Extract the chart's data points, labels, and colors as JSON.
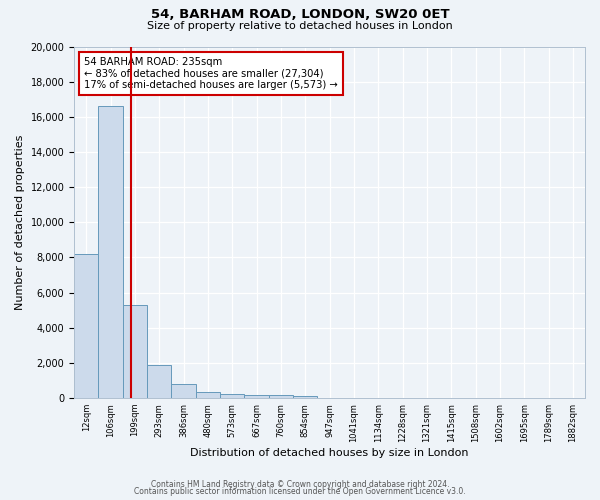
{
  "title": "54, BARHAM ROAD, LONDON, SW20 0ET",
  "subtitle": "Size of property relative to detached houses in London",
  "xlabel": "Distribution of detached houses by size in London",
  "ylabel": "Number of detached properties",
  "bar_categories": [
    "12sqm",
    "106sqm",
    "199sqm",
    "293sqm",
    "386sqm",
    "480sqm",
    "573sqm",
    "667sqm",
    "760sqm",
    "854sqm",
    "947sqm",
    "1041sqm",
    "1134sqm",
    "1228sqm",
    "1321sqm",
    "1415sqm",
    "1508sqm",
    "1602sqm",
    "1695sqm",
    "1789sqm",
    "1882sqm"
  ],
  "bar_values": [
    8200,
    16600,
    5300,
    1850,
    800,
    350,
    200,
    180,
    150,
    100,
    0,
    0,
    0,
    0,
    0,
    0,
    0,
    0,
    0,
    0,
    0
  ],
  "bar_color": "#ccdaeb",
  "bar_edge_color": "#6699bb",
  "vline_x": 2.33,
  "vline_color": "#cc0000",
  "annotation_title": "54 BARHAM ROAD: 235sqm",
  "annotation_line1": "← 83% of detached houses are smaller (27,304)",
  "annotation_line2": "17% of semi-detached houses are larger (5,573) →",
  "annotation_box_color": "#ffffff",
  "annotation_box_edge": "#cc0000",
  "ylim": [
    0,
    20000
  ],
  "background_color": "#eef3f8",
  "grid_color": "#d0dae8",
  "footer1": "Contains HM Land Registry data © Crown copyright and database right 2024.",
  "footer2": "Contains public sector information licensed under the Open Government Licence v3.0."
}
